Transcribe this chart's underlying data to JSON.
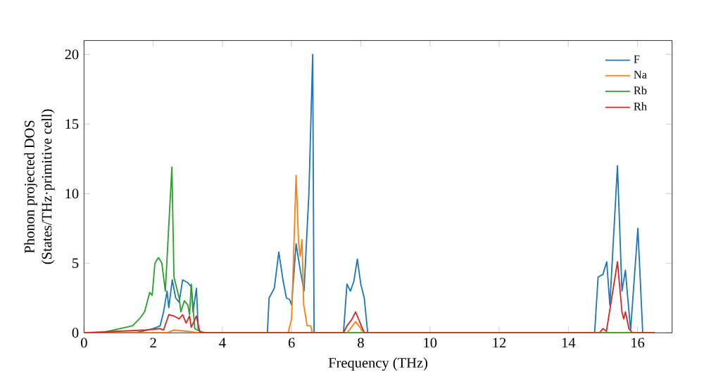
{
  "chart_data": {
    "type": "line",
    "xlabel": "Frequency (THz)",
    "ylabel": "Phonon projected DOS\n(States/THz·primitive cell)",
    "xlim": [
      0,
      17
    ],
    "ylim": [
      0,
      21
    ],
    "xticks": [
      0,
      2,
      4,
      6,
      8,
      10,
      12,
      14,
      16
    ],
    "yticks": [
      0,
      5,
      10,
      15,
      20
    ],
    "legend": "top right",
    "grid": false,
    "marker": "none",
    "line_style": "solid",
    "series": [
      {
        "name": "F",
        "color": "#1f77b4",
        "x": [
          0,
          1.5,
          2.0,
          2.2,
          2.3,
          2.4,
          2.45,
          2.55,
          2.65,
          2.75,
          2.85,
          3.0,
          3.1,
          3.15,
          3.25,
          3.3,
          3.4,
          5.3,
          5.35,
          5.5,
          5.63,
          5.75,
          5.85,
          5.94,
          6.0,
          6.13,
          6.25,
          6.36,
          6.5,
          6.61,
          6.65,
          7.5,
          7.6,
          7.7,
          7.8,
          7.9,
          8.0,
          8.1,
          8.2,
          14.76,
          14.86,
          15.0,
          15.11,
          15.2,
          15.42,
          15.55,
          15.65,
          15.7,
          15.8,
          16.01,
          16.15,
          16.5
        ],
        "values": [
          0,
          0,
          0.3,
          0.5,
          1.5,
          3,
          1.8,
          3.8,
          2.5,
          2.2,
          3.8,
          3.6,
          3.3,
          1.5,
          3.2,
          0.3,
          0,
          0,
          2.5,
          3.2,
          5.8,
          3.8,
          2.5,
          2.4,
          2.0,
          6.4,
          4.5,
          3.0,
          10,
          20,
          0,
          0,
          3.5,
          3.0,
          3.7,
          5.3,
          3.5,
          2.5,
          0,
          0,
          4.0,
          4.2,
          5.1,
          2.0,
          12,
          3.0,
          4.5,
          3.0,
          0.2,
          7.5,
          0,
          0
        ]
      },
      {
        "name": "Na",
        "color": "#ff7f0e",
        "x": [
          0,
          2.4,
          2.6,
          3.0,
          3.3,
          5.9,
          6.0,
          6.13,
          6.2,
          6.25,
          6.3,
          6.35,
          6.45,
          6.55,
          6.6,
          7.6,
          7.7,
          7.85,
          8.0,
          8.1,
          16.5
        ],
        "values": [
          0,
          0,
          0.2,
          0.1,
          0,
          0,
          1.0,
          11.3,
          6.5,
          5.5,
          6.7,
          2.0,
          0.5,
          0.5,
          0,
          0,
          0.3,
          0.8,
          0.3,
          0,
          0
        ]
      },
      {
        "name": "Rb",
        "color": "#2ca02c",
        "x": [
          0,
          0.5,
          1.4,
          1.6,
          1.75,
          1.9,
          1.97,
          2.05,
          2.15,
          2.25,
          2.35,
          2.54,
          2.6,
          2.75,
          2.8,
          2.9,
          3.0,
          3.05,
          3.1,
          3.2,
          3.35,
          3.5,
          16.5
        ],
        "values": [
          0,
          0,
          0.5,
          1.0,
          1.5,
          2.9,
          2.7,
          5.0,
          5.4,
          5.0,
          3.0,
          11.9,
          4.0,
          2.5,
          1.5,
          2.3,
          2.0,
          1.3,
          3.5,
          0.3,
          0.1,
          0,
          0
        ]
      },
      {
        "name": "Rh",
        "color": "#d62728",
        "x": [
          0,
          1.8,
          2.2,
          2.3,
          2.45,
          2.6,
          2.75,
          2.85,
          2.95,
          3.05,
          3.1,
          3.25,
          3.35,
          7.5,
          7.6,
          7.75,
          7.85,
          8.0,
          8.1,
          14.9,
          15.0,
          15.1,
          15.42,
          15.55,
          15.6,
          15.65,
          15.75,
          15.85,
          16.5
        ],
        "values": [
          0,
          0.2,
          0.3,
          0.2,
          1.3,
          1.2,
          1.0,
          1.3,
          0.7,
          1.2,
          0.4,
          1.2,
          0,
          0,
          0.5,
          1.0,
          1.5,
          0.6,
          0,
          0,
          0.3,
          0.1,
          5.1,
          1.5,
          1.0,
          1.5,
          0.3,
          0,
          0
        ]
      }
    ]
  }
}
